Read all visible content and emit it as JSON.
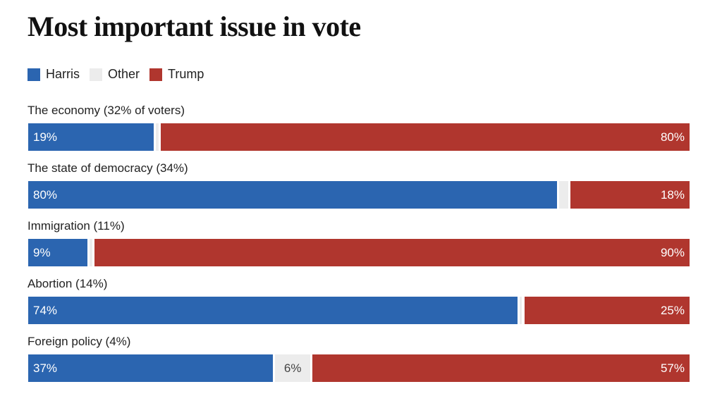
{
  "chart_data": {
    "type": "bar",
    "orientation": "horizontal",
    "stacked": true,
    "title": "Most important issue in vote",
    "xlim": [
      0,
      100
    ],
    "legend": [
      {
        "name": "Harris",
        "color": "#2b65b0"
      },
      {
        "name": "Other",
        "color": "#ececec"
      },
      {
        "name": "Trump",
        "color": "#b0362e"
      }
    ],
    "rows": [
      {
        "label": "The economy (32% of voters)",
        "harris": 19,
        "other": 1,
        "trump": 80,
        "harris_label": "19%",
        "other_label": "",
        "trump_label": "80%"
      },
      {
        "label": "The state of democracy (34%)",
        "harris": 80,
        "other": 2,
        "trump": 18,
        "harris_label": "80%",
        "other_label": "",
        "trump_label": "18%"
      },
      {
        "label": "Immigration (11%)",
        "harris": 9,
        "other": 1,
        "trump": 90,
        "harris_label": "9%",
        "other_label": "",
        "trump_label": "90%"
      },
      {
        "label": "Abortion (14%)",
        "harris": 74,
        "other": 1,
        "trump": 25,
        "harris_label": "74%",
        "other_label": "",
        "trump_label": "25%"
      },
      {
        "label": "Foreign policy (4%)",
        "harris": 37,
        "other": 6,
        "trump": 57,
        "harris_label": "37%",
        "other_label": "6%",
        "trump_label": "57%"
      }
    ]
  }
}
